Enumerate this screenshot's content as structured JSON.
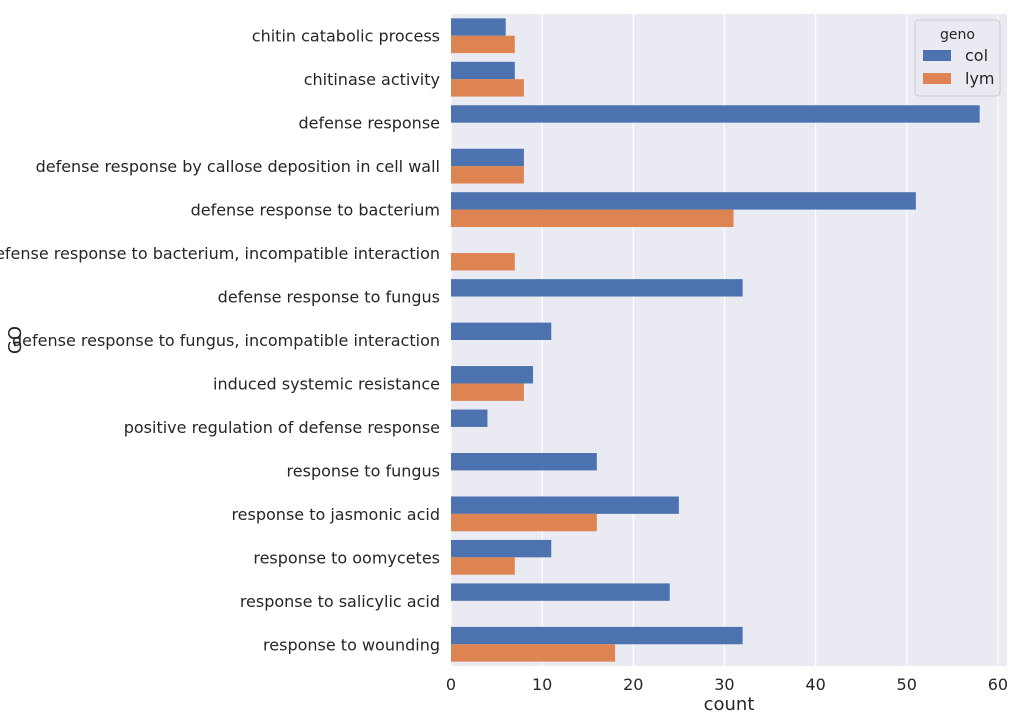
{
  "chart_data": {
    "type": "bar",
    "orientation": "horizontal",
    "categories": [
      "chitin catabolic process",
      "chitinase activity",
      "defense response",
      "defense response by callose deposition in cell wall",
      "defense response to bacterium",
      "defense response to bacterium, incompatible interaction",
      "defense response to fungus",
      "defense response to fungus, incompatible interaction",
      "induced systemic resistance",
      "positive regulation of defense response",
      "response to fungus",
      "response to jasmonic acid",
      "response to oomycetes",
      "response to salicylic acid",
      "response to wounding"
    ],
    "series": [
      {
        "name": "col",
        "color": "#4c72b0",
        "values": [
          6,
          7,
          58,
          8,
          51,
          null,
          32,
          11,
          9,
          4,
          16,
          25,
          11,
          24,
          32
        ]
      },
      {
        "name": "lym",
        "color": "#dd8452",
        "values": [
          7,
          8,
          null,
          8,
          31,
          7,
          null,
          null,
          8,
          null,
          null,
          16,
          7,
          null,
          18
        ]
      }
    ],
    "xlabel": "count",
    "ylabel": "GO",
    "xlim": [
      0,
      61
    ],
    "xticks": [
      0,
      10,
      20,
      30,
      40,
      50,
      60
    ],
    "legend": {
      "title": "geno",
      "placement": "top-right"
    },
    "grid": true,
    "background": "#eaeaf2"
  }
}
